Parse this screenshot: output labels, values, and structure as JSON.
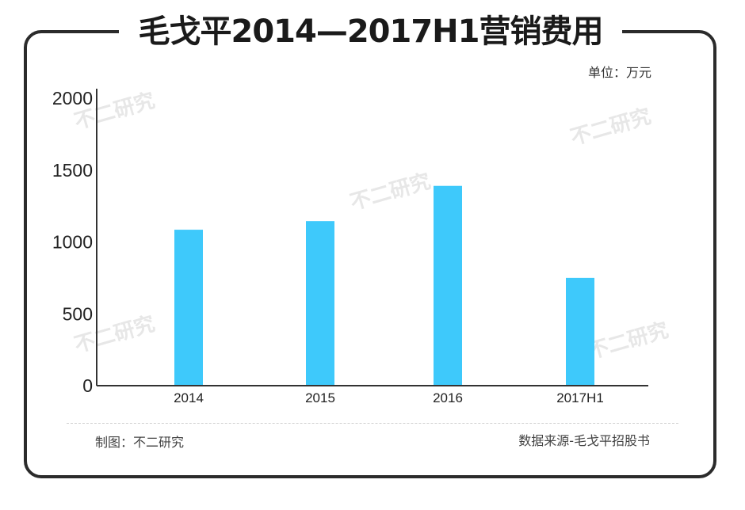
{
  "title": "毛戈平2014—2017H1营销费用",
  "unit_label": "单位：万元",
  "footer": {
    "made_by": "制图：不二研究",
    "source": "数据来源-毛戈平招股书"
  },
  "watermark": "不二研究",
  "colors": {
    "bar": "#3ec9fb",
    "axis": "#333333",
    "frame": "#2b2b2b"
  },
  "chart_data": {
    "type": "bar",
    "categories": [
      "2014",
      "2015",
      "2016",
      "2017H1"
    ],
    "values": [
      1085,
      1145,
      1390,
      750
    ],
    "ylim": [
      0,
      2000
    ],
    "yticks": [
      "0",
      "500",
      "1000",
      "1500",
      "2000"
    ],
    "grid": false,
    "legend": "none"
  }
}
